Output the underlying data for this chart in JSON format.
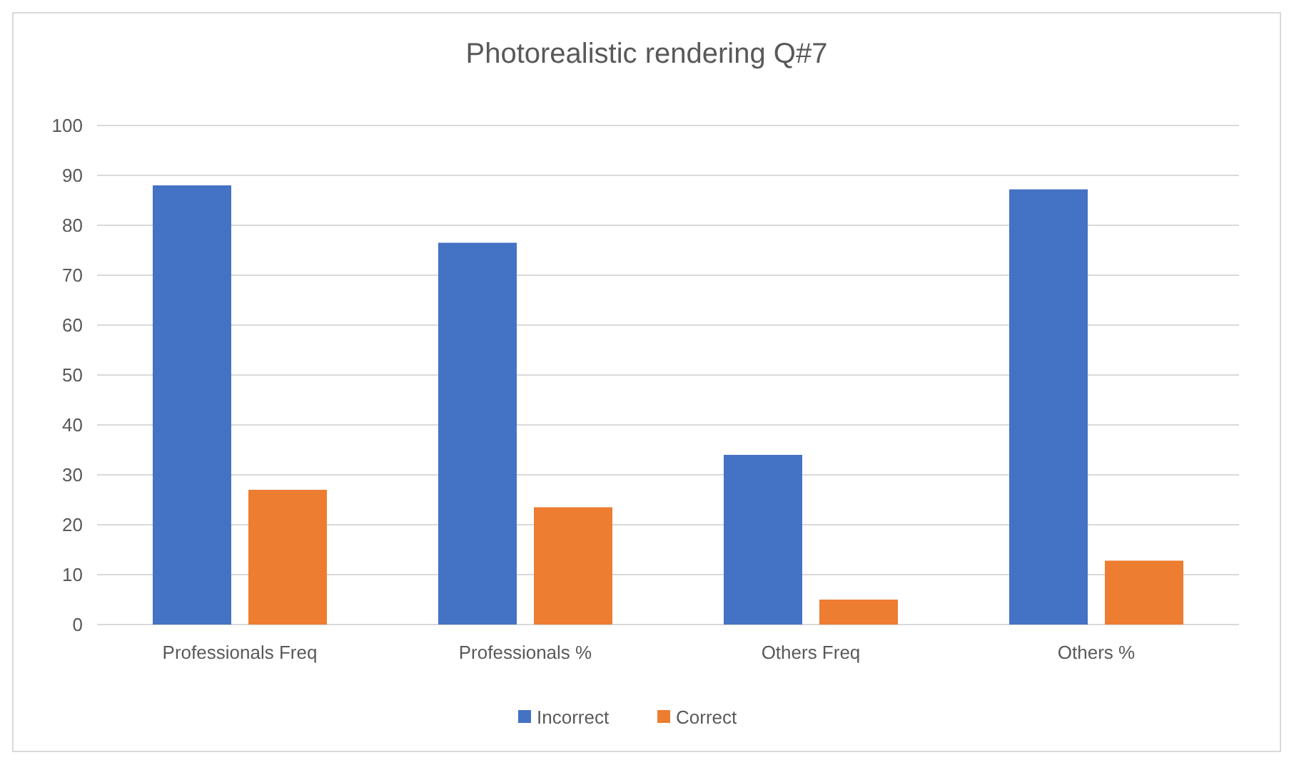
{
  "chart_data": {
    "type": "bar",
    "title": "Photorealistic rendering Q#7",
    "categories": [
      "Professionals Freq",
      "Professionals %",
      "Others Freq",
      "Others %"
    ],
    "series": [
      {
        "name": "Incorrect",
        "color": "#4472c4",
        "values": [
          88,
          76.5,
          34,
          87.2
        ]
      },
      {
        "name": "Correct",
        "color": "#ed7d31",
        "values": [
          27,
          23.5,
          5,
          12.8
        ]
      }
    ],
    "ylim": [
      0,
      100
    ],
    "yticks": [
      0,
      10,
      20,
      30,
      40,
      50,
      60,
      70,
      80,
      90,
      100
    ],
    "grid": "y",
    "legend": "bottom"
  }
}
